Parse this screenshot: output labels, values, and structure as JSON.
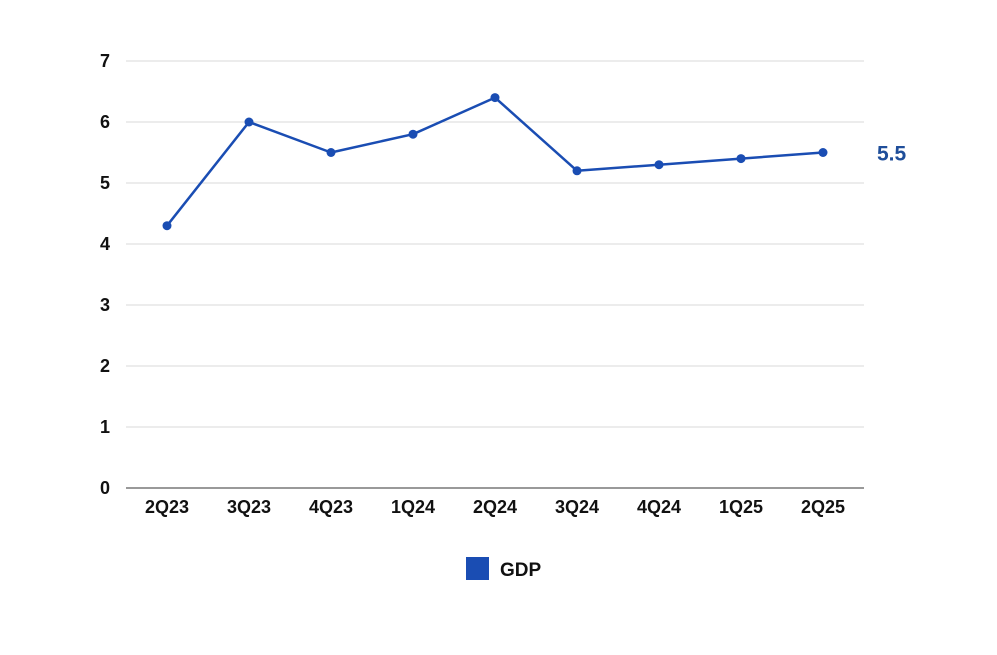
{
  "chart_data": {
    "type": "line",
    "categories": [
      "2Q23",
      "3Q23",
      "4Q23",
      "1Q24",
      "2Q24",
      "3Q24",
      "4Q24",
      "1Q25",
      "2Q25"
    ],
    "series": [
      {
        "name": "GDP",
        "values": [
          4.3,
          6.0,
          5.5,
          5.8,
          6.4,
          5.2,
          5.3,
          5.4,
          5.5
        ],
        "color": "#1a4db3"
      }
    ],
    "last_value_label": "5.5",
    "last_value_label_color": "#1f4e9a",
    "ylim": [
      0,
      7
    ],
    "yticks": [
      "0",
      "1",
      "2",
      "3",
      "4",
      "5",
      "6",
      "7"
    ],
    "grid": true,
    "grid_color": "#d9d9d9",
    "legend_position": "bottom-center",
    "title": "",
    "xlabel": "",
    "ylabel": ""
  }
}
